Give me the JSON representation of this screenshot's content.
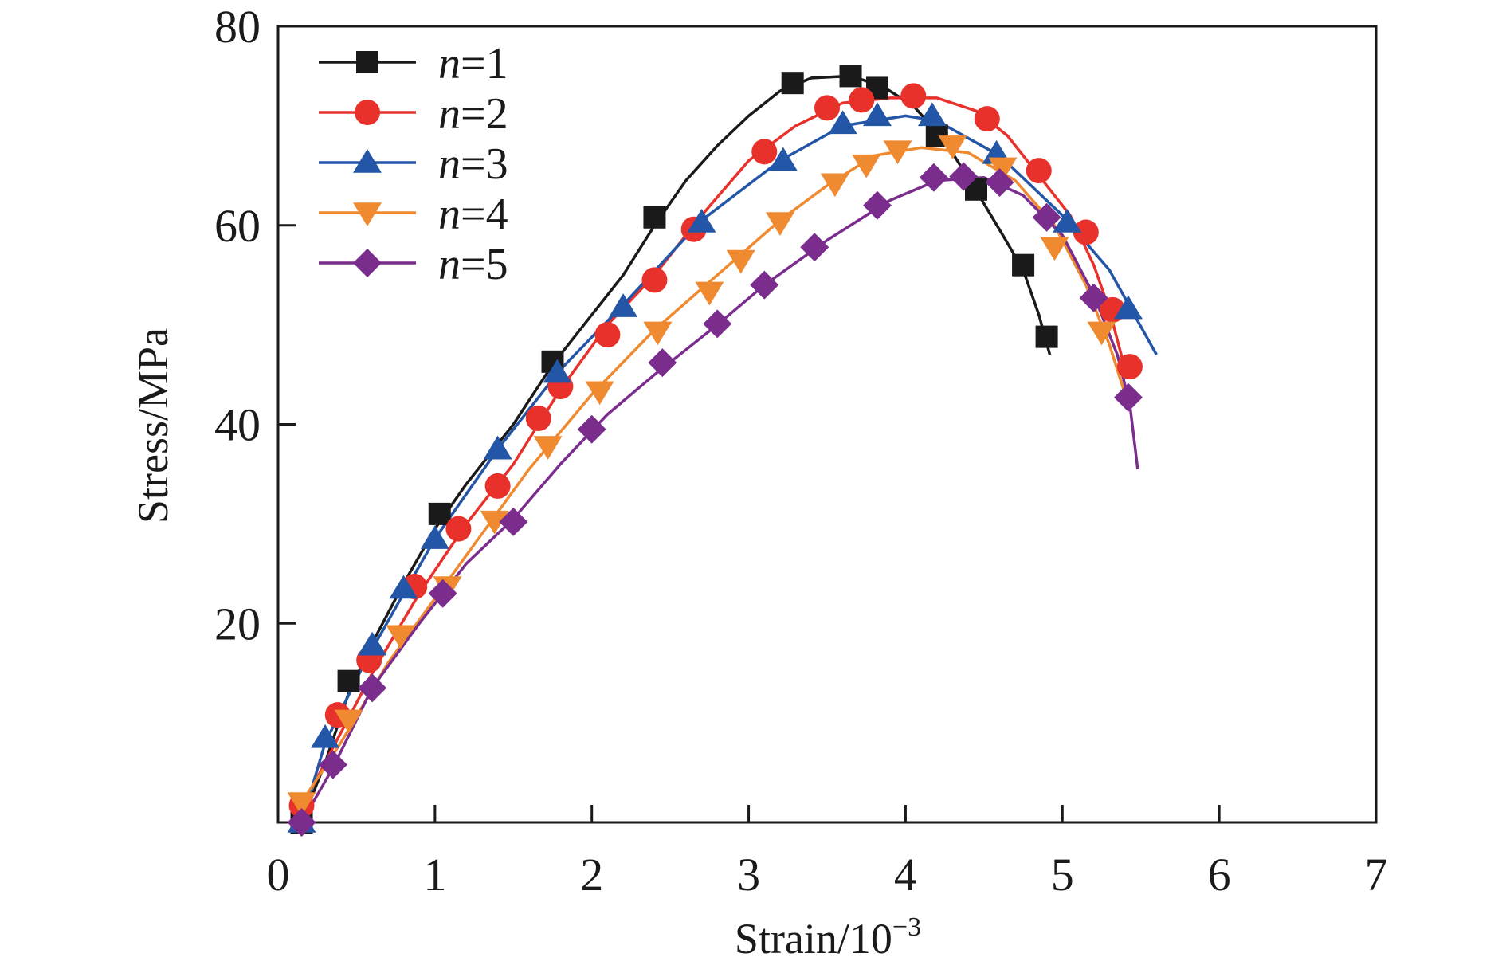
{
  "chart_data": {
    "type": "line",
    "xlabel": "Strain/10",
    "xlabel_exponent": "−3",
    "ylabel": "Stress/MPa",
    "xlim": [
      0,
      7
    ],
    "ylim": [
      0,
      80
    ],
    "xticks": [
      0,
      1,
      2,
      3,
      4,
      5,
      6,
      7
    ],
    "yticks": [
      20,
      40,
      60,
      80
    ],
    "ytick_labels": [
      "20",
      "40",
      "60",
      "80"
    ],
    "xtick_labels": [
      "0",
      "1",
      "2",
      "3",
      "4",
      "5",
      "6",
      "7"
    ],
    "grid": false,
    "legend_position": "top-left",
    "series": [
      {
        "name": "n=1",
        "legend_var": "n",
        "legend_value": "=1",
        "color": "#1a1a1a",
        "marker": "square",
        "line": [
          [
            0.15,
            0
          ],
          [
            0.3,
            6
          ],
          [
            0.45,
            13
          ],
          [
            0.6,
            18
          ],
          [
            0.8,
            24
          ],
          [
            1.0,
            29.5
          ],
          [
            1.2,
            34
          ],
          [
            1.5,
            40
          ],
          [
            1.75,
            46
          ],
          [
            2.0,
            51
          ],
          [
            2.2,
            55
          ],
          [
            2.4,
            60
          ],
          [
            2.6,
            64.5
          ],
          [
            2.8,
            68
          ],
          [
            3.0,
            71
          ],
          [
            3.2,
            73.5
          ],
          [
            3.4,
            74.8
          ],
          [
            3.65,
            75
          ],
          [
            3.85,
            74
          ],
          [
            4.05,
            72
          ],
          [
            4.25,
            68.5
          ],
          [
            4.45,
            63.5
          ],
          [
            4.62,
            59
          ],
          [
            4.75,
            55.5
          ],
          [
            4.85,
            51
          ],
          [
            4.92,
            47
          ]
        ],
        "markers": [
          [
            0.15,
            0
          ],
          [
            0.45,
            14.2
          ],
          [
            1.03,
            31
          ],
          [
            1.75,
            46.3
          ],
          [
            2.4,
            60.8
          ],
          [
            3.28,
            74.3
          ],
          [
            3.65,
            75
          ],
          [
            3.82,
            73.8
          ],
          [
            4.2,
            69
          ],
          [
            4.45,
            63.6
          ],
          [
            4.75,
            56
          ],
          [
            4.9,
            48.8
          ]
        ]
      },
      {
        "name": "n=2",
        "legend_var": "n",
        "legend_value": "=2",
        "color": "#e8312b",
        "marker": "circle",
        "line": [
          [
            0.15,
            1.5
          ],
          [
            0.35,
            7.5
          ],
          [
            0.6,
            15
          ],
          [
            0.9,
            23
          ],
          [
            1.2,
            30
          ],
          [
            1.5,
            36
          ],
          [
            1.8,
            43.5
          ],
          [
            2.1,
            50
          ],
          [
            2.4,
            55
          ],
          [
            2.7,
            61
          ],
          [
            3.0,
            66.5
          ],
          [
            3.3,
            70
          ],
          [
            3.6,
            72.3
          ],
          [
            3.9,
            72.8
          ],
          [
            4.2,
            72.8
          ],
          [
            4.45,
            71.5
          ],
          [
            4.65,
            69
          ],
          [
            4.85,
            65
          ],
          [
            5.05,
            61
          ],
          [
            5.2,
            56
          ],
          [
            5.3,
            51.5
          ],
          [
            5.4,
            45.5
          ]
        ],
        "markers": [
          [
            0.15,
            1.7
          ],
          [
            0.38,
            10.8
          ],
          [
            0.58,
            16.3
          ],
          [
            0.87,
            23.7
          ],
          [
            1.15,
            29.5
          ],
          [
            1.4,
            33.8
          ],
          [
            1.66,
            40.6
          ],
          [
            1.8,
            43.8
          ],
          [
            2.1,
            49
          ],
          [
            2.4,
            54.5
          ],
          [
            2.65,
            59.6
          ],
          [
            3.1,
            67.4
          ],
          [
            3.5,
            71.8
          ],
          [
            3.72,
            72.6
          ],
          [
            4.05,
            73
          ],
          [
            4.52,
            70.7
          ],
          [
            4.85,
            65.5
          ],
          [
            5.15,
            59.3
          ],
          [
            5.32,
            51.5
          ],
          [
            5.43,
            45.8
          ]
        ]
      },
      {
        "name": "n=3",
        "legend_var": "n",
        "legend_value": "=3",
        "color": "#2456a8",
        "marker": "triangle-up",
        "line": [
          [
            0.15,
            0
          ],
          [
            0.3,
            8
          ],
          [
            0.55,
            16
          ],
          [
            0.8,
            23
          ],
          [
            1.0,
            28.5
          ],
          [
            1.4,
            37.5
          ],
          [
            1.8,
            45.5
          ],
          [
            2.2,
            52
          ],
          [
            2.7,
            60.5
          ],
          [
            3.2,
            66.5
          ],
          [
            3.6,
            70
          ],
          [
            4.0,
            71
          ],
          [
            4.2,
            70.5
          ],
          [
            4.6,
            67
          ],
          [
            5.0,
            61
          ],
          [
            5.3,
            55.5
          ],
          [
            5.6,
            47
          ]
        ],
        "markers": [
          [
            0.15,
            0
          ],
          [
            0.3,
            8.5
          ],
          [
            0.6,
            17.8
          ],
          [
            0.8,
            23.5
          ],
          [
            1.0,
            28.5
          ],
          [
            1.4,
            37.5
          ],
          [
            1.78,
            45.2
          ],
          [
            2.2,
            51.8
          ],
          [
            2.7,
            60.3
          ],
          [
            3.22,
            66.5
          ],
          [
            3.6,
            70.2
          ],
          [
            3.82,
            71
          ],
          [
            4.17,
            71
          ],
          [
            4.58,
            67.2
          ],
          [
            5.03,
            60.3
          ],
          [
            5.42,
            51.6
          ]
        ]
      },
      {
        "name": "n=4",
        "legend_var": "n",
        "legend_value": "=4",
        "color": "#f08a31",
        "marker": "triangle-down",
        "line": [
          [
            0.15,
            2
          ],
          [
            0.4,
            8
          ],
          [
            0.7,
            16
          ],
          [
            1.0,
            22.5
          ],
          [
            1.3,
            29
          ],
          [
            1.6,
            35.5
          ],
          [
            2.0,
            43
          ],
          [
            2.4,
            49.5
          ],
          [
            2.8,
            55
          ],
          [
            3.2,
            60.5
          ],
          [
            3.5,
            64
          ],
          [
            3.8,
            67
          ],
          [
            4.1,
            67.8
          ],
          [
            4.4,
            67.3
          ],
          [
            4.7,
            64.5
          ],
          [
            4.95,
            60
          ],
          [
            5.15,
            54
          ],
          [
            5.3,
            48
          ],
          [
            5.4,
            43
          ]
        ],
        "markers": [
          [
            0.15,
            2
          ],
          [
            0.45,
            10.3
          ],
          [
            0.78,
            18.8
          ],
          [
            1.08,
            23.7
          ],
          [
            1.38,
            30.3
          ],
          [
            1.72,
            37.8
          ],
          [
            2.05,
            43.3
          ],
          [
            2.42,
            49.3
          ],
          [
            2.75,
            53.3
          ],
          [
            2.95,
            56.5
          ],
          [
            3.2,
            60.3
          ],
          [
            3.55,
            64.2
          ],
          [
            3.75,
            66.1
          ],
          [
            3.95,
            67.5
          ],
          [
            4.3,
            68
          ],
          [
            4.62,
            65.8
          ],
          [
            4.95,
            57.8
          ],
          [
            5.25,
            49.3
          ]
        ]
      },
      {
        "name": "n=5",
        "legend_var": "n",
        "legend_value": "=5",
        "color": "#7b2d8e",
        "marker": "diamond",
        "line": [
          [
            0.15,
            0
          ],
          [
            0.35,
            5.5
          ],
          [
            0.6,
            13.5
          ],
          [
            0.9,
            20
          ],
          [
            1.2,
            26
          ],
          [
            1.5,
            30.5
          ],
          [
            1.8,
            36
          ],
          [
            2.1,
            41
          ],
          [
            2.4,
            45
          ],
          [
            2.8,
            50
          ],
          [
            3.1,
            54
          ],
          [
            3.5,
            58.5
          ],
          [
            3.9,
            62.5
          ],
          [
            4.2,
            64.5
          ],
          [
            4.5,
            64.8
          ],
          [
            4.75,
            63
          ],
          [
            5.0,
            59
          ],
          [
            5.2,
            53
          ],
          [
            5.35,
            47
          ],
          [
            5.43,
            42
          ],
          [
            5.48,
            35.5
          ]
        ],
        "markers": [
          [
            0.15,
            0
          ],
          [
            0.35,
            5.8
          ],
          [
            0.6,
            13.5
          ],
          [
            1.05,
            23
          ],
          [
            1.5,
            30.2
          ],
          [
            2.0,
            39.5
          ],
          [
            2.45,
            46.2
          ],
          [
            2.8,
            50.1
          ],
          [
            3.1,
            54
          ],
          [
            3.42,
            57.8
          ],
          [
            3.82,
            62
          ],
          [
            4.18,
            64.8
          ],
          [
            4.37,
            64.9
          ],
          [
            4.6,
            64.3
          ],
          [
            4.9,
            60.8
          ],
          [
            5.2,
            52.7
          ],
          [
            5.42,
            42.7
          ]
        ]
      }
    ]
  }
}
